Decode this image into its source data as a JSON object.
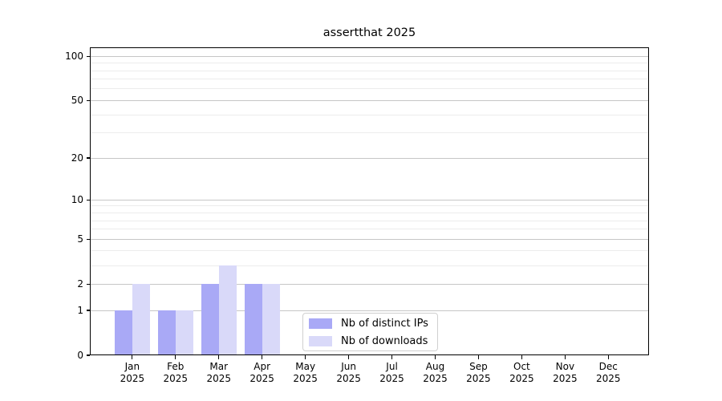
{
  "chart_data": {
    "type": "bar",
    "title": "assertthat 2025",
    "categories": [
      "Jan",
      "Feb",
      "Mar",
      "Apr",
      "May",
      "Jun",
      "Jul",
      "Aug",
      "Sep",
      "Oct",
      "Nov",
      "Dec"
    ],
    "x_year": "2025",
    "series": [
      {
        "name": "Nb of distinct IPs",
        "color": "#a9a9f6",
        "values": [
          1,
          1,
          2,
          2,
          0,
          0,
          0,
          0,
          0,
          0,
          0,
          0
        ]
      },
      {
        "name": "Nb of downloads",
        "color": "#d9d9f9",
        "values": [
          2,
          1,
          3,
          2,
          0,
          0,
          0,
          0,
          0,
          0,
          0,
          0
        ]
      }
    ],
    "y_scale": "log1p",
    "y_ticks": [
      0,
      1,
      2,
      5,
      10,
      20,
      50,
      100
    ],
    "y_minor_gridlines": [
      3,
      4,
      6,
      7,
      8,
      9,
      30,
      40,
      60,
      70,
      80,
      90
    ],
    "ylim": [
      0,
      115
    ],
    "grid": "horizontal",
    "legend_position": "lower center"
  },
  "colors": {
    "major_grid": "#c6c6c6",
    "minor_grid": "#ececec",
    "axis": "#000000",
    "legend_border": "#d0d0d0"
  }
}
